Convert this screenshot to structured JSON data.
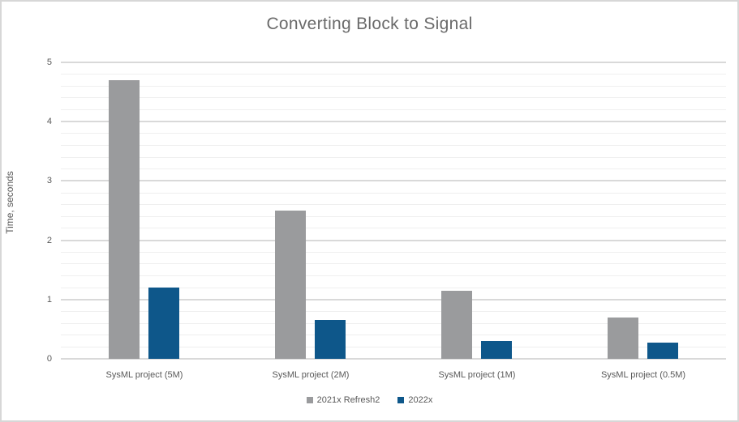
{
  "chart_data": {
    "type": "bar",
    "title": "Converting Block to Signal",
    "xlabel": "",
    "ylabel": "Time, seconds",
    "categories": [
      "SysML project (5M)",
      "SysML project (2M)",
      "SysML project (1M)",
      "SysML project (0.5M)"
    ],
    "series": [
      {
        "name": "2021x Refresh2",
        "color": "#9a9b9d",
        "values": [
          4.7,
          2.5,
          1.15,
          0.7
        ]
      },
      {
        "name": "2022x",
        "color": "#0e578a",
        "values": [
          1.2,
          0.65,
          0.3,
          0.27
        ]
      }
    ],
    "ylim": [
      0,
      5
    ],
    "y_ticks": [
      "0",
      "1",
      "2",
      "3",
      "4",
      "5"
    ],
    "y_major_step": 1,
    "y_minor_step": 0.2,
    "grid": "horizontal, major and minor lines",
    "legend_position": "bottom-center"
  },
  "colors": {
    "background": "#ffffff",
    "chart_border": "#d7d7d7",
    "title_text": "#6a6a6a",
    "axis_text": "#595959",
    "major_gridline": "#d9d9d9",
    "minor_gridline": "#efefef"
  }
}
